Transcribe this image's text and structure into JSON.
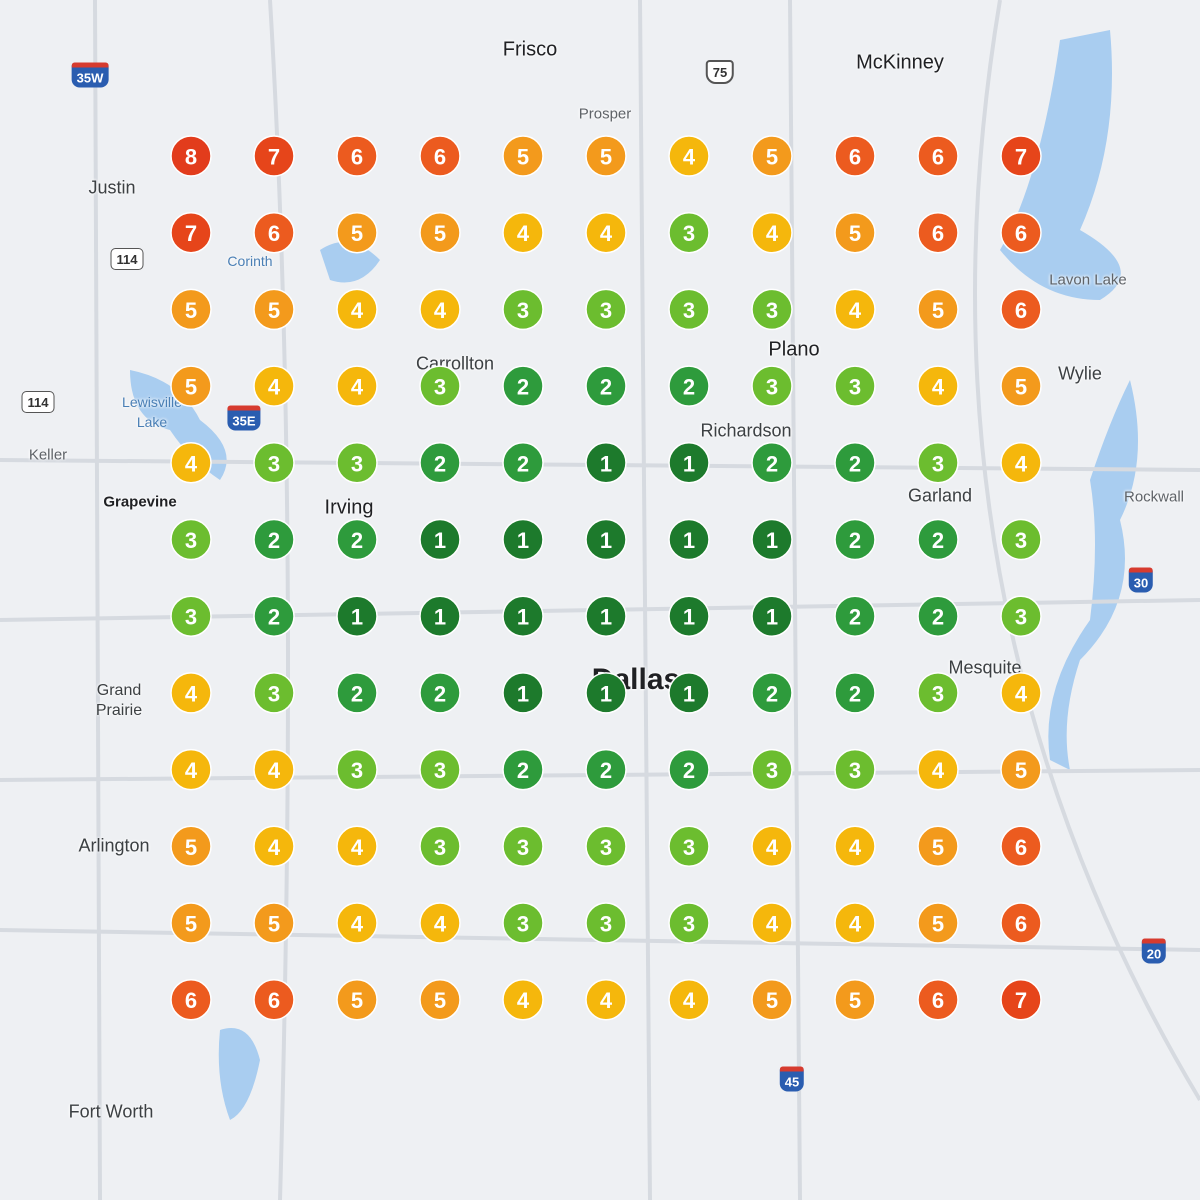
{
  "places": [
    "Frisco",
    "McKinney",
    "Prosper",
    "Justin",
    "Corinth",
    "Lavon Lake",
    "Carrollton",
    "Plano",
    "Wylie",
    "Lewisville Lake",
    "Keller",
    "Richardson",
    "Grapevine",
    "Irving",
    "Garland",
    "Rockwall",
    "Mesquite",
    "Dallas",
    "Grand Prairie",
    "Arlington",
    "Fort Worth"
  ],
  "shields": [
    "35W",
    "75",
    "114",
    "114",
    "35E",
    "30",
    "20",
    "45"
  ],
  "grid": {
    "colors": {
      "1": "#1d7a2c",
      "2": "#2e9b3c",
      "3": "#6cbd2f",
      "4": "#f5b70c",
      "5": "#f39a1c",
      "6": "#ec5b1f",
      "7": "#e6451a",
      "8": "#e23c1c"
    },
    "rows": [
      [
        8,
        7,
        6,
        6,
        5,
        5,
        4,
        5,
        6,
        6,
        7
      ],
      [
        7,
        6,
        5,
        5,
        4,
        4,
        3,
        4,
        5,
        6,
        6
      ],
      [
        5,
        5,
        4,
        4,
        3,
        3,
        3,
        3,
        4,
        5,
        6
      ],
      [
        5,
        4,
        4,
        3,
        2,
        2,
        2,
        3,
        3,
        4,
        5
      ],
      [
        4,
        3,
        3,
        2,
        2,
        1,
        1,
        2,
        2,
        3,
        4
      ],
      [
        3,
        2,
        2,
        1,
        1,
        1,
        1,
        1,
        2,
        2,
        3
      ],
      [
        3,
        2,
        1,
        1,
        1,
        1,
        1,
        1,
        2,
        2,
        3
      ],
      [
        4,
        3,
        2,
        2,
        1,
        1,
        1,
        2,
        2,
        3,
        4
      ],
      [
        4,
        4,
        3,
        3,
        2,
        2,
        2,
        3,
        3,
        4,
        5
      ],
      [
        5,
        4,
        4,
        3,
        3,
        3,
        3,
        4,
        4,
        5,
        6
      ],
      [
        5,
        5,
        4,
        4,
        3,
        3,
        3,
        4,
        4,
        5,
        6
      ],
      [
        6,
        6,
        5,
        5,
        4,
        4,
        4,
        5,
        5,
        6,
        7
      ]
    ]
  }
}
